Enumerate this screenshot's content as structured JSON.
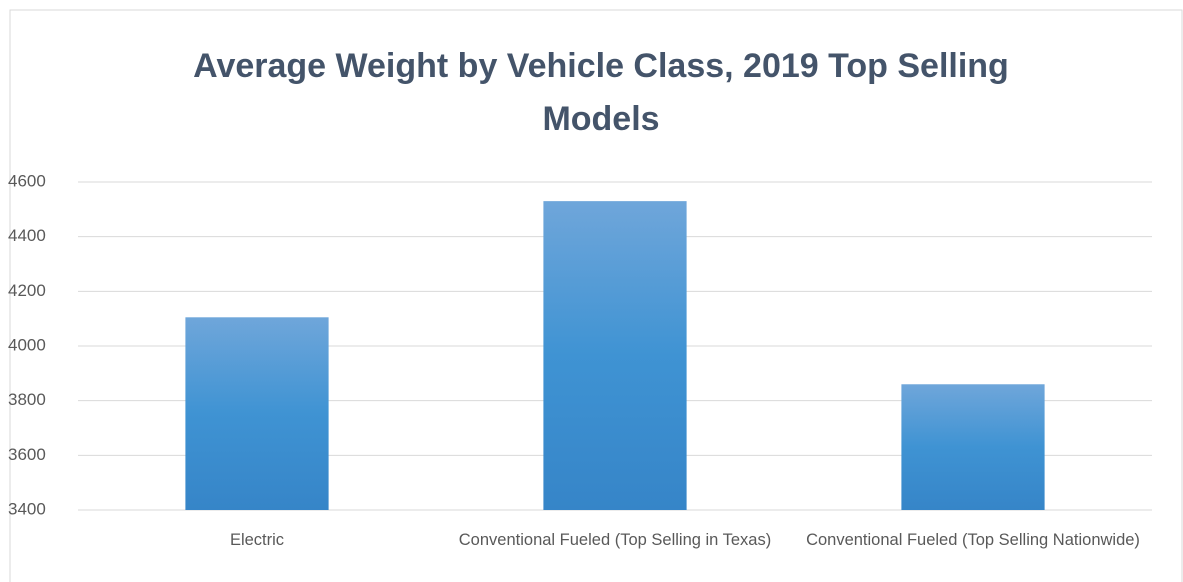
{
  "chart_data": {
    "type": "bar",
    "title": "Average Weight by Vehicle Class, 2019 Top Selling Models",
    "categories": [
      "Electric",
      "Conventional Fueled (Top Selling in Texas)",
      "Conventional Fueled (Top Selling Nationwide)"
    ],
    "values": [
      4105,
      4530,
      3860
    ],
    "color": "#3a8bd0",
    "ylim": [
      3400,
      4600
    ],
    "yticks": [
      3400,
      3600,
      3800,
      4000,
      4200,
      4400,
      4600
    ],
    "grid": true
  }
}
